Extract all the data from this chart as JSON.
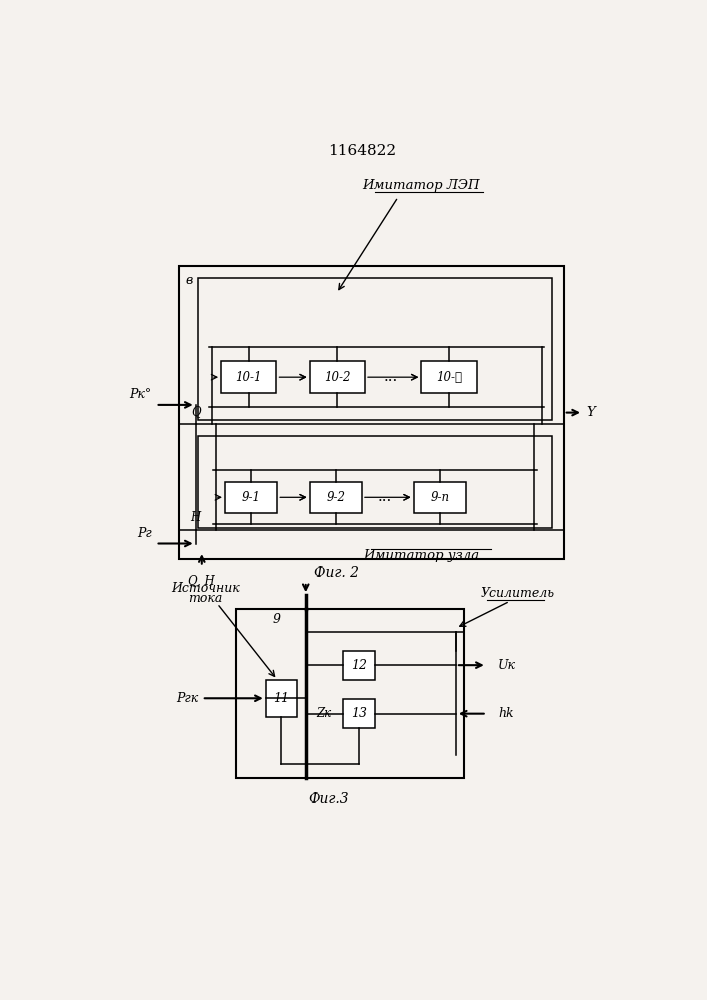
{
  "title": "1164822",
  "bg_color": "#f5f2ee",
  "fig2_label": "Фиг. 2",
  "fig3_label": "Фиг.3",
  "imitator_lep_label": "Имитатор ЛЭП",
  "imitator_uzla_label": "Имитатор узла",
  "block_B_label": "в",
  "block_9_label": "9",
  "source_label1": "Источник",
  "source_label2": "тока",
  "usil_label": "Усилитель",
  "Pk0_label": "Pк°",
  "Pg_label": "Pг",
  "QH_label": "Q, H",
  "Q_label": "Q",
  "H_label": "H",
  "Y_label": "Y",
  "Pgk_label": "Pгк",
  "Uk_label": "Uк",
  "Zk_label": "Zк",
  "hk_label": "hk",
  "boxes_top": [
    "10-1",
    "10-2",
    "10-ℓ"
  ],
  "boxes_mid": [
    "9-1",
    "9-2",
    "9-n"
  ],
  "box_11": "11",
  "box_12": "12",
  "box_13": "13"
}
